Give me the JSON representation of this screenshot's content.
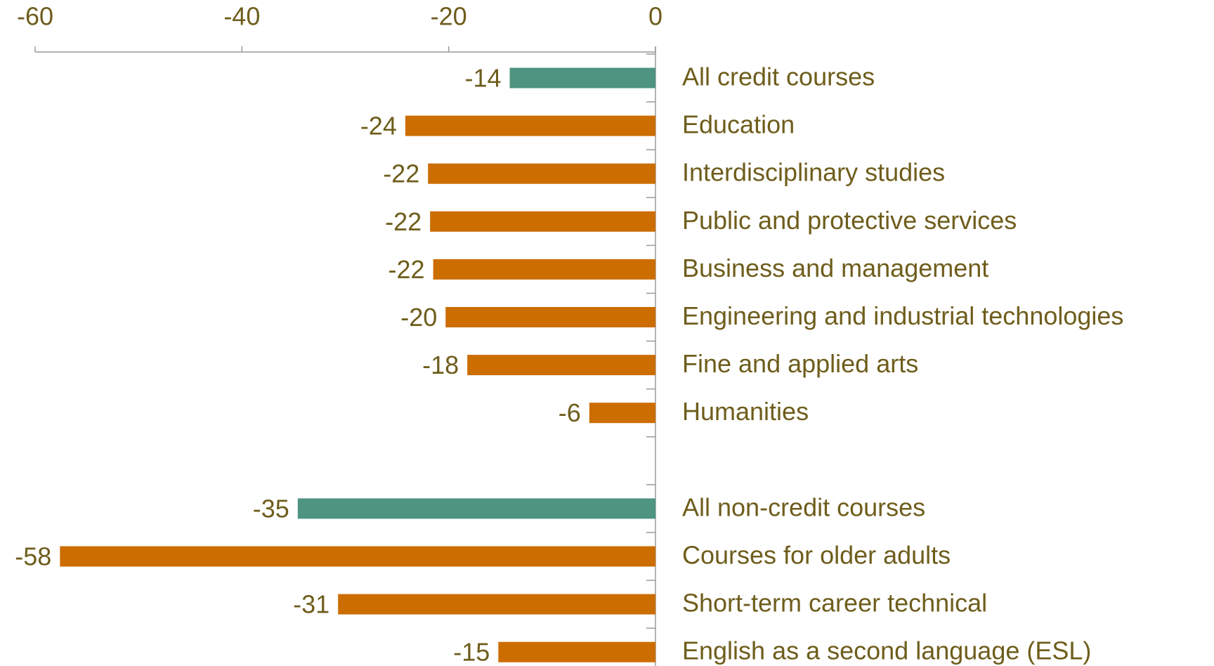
{
  "chart_data": {
    "type": "barh",
    "categories": [
      "All credit courses",
      "Education",
      "Interdisciplinary studies",
      "Public and protective services",
      "Business and management",
      "Engineering and industrial technologies",
      "Fine and applied arts",
      "Humanities",
      null,
      "All non-credit courses",
      "Courses for older adults",
      "Short-term career technical",
      "English as a second language (ESL)"
    ],
    "values": [
      -14.1,
      -24.2,
      -22.0,
      -21.8,
      -21.5,
      -20.3,
      -18.2,
      -6.4,
      null,
      -34.6,
      -57.6,
      -30.7,
      -15.2
    ],
    "value_labels": [
      "-14",
      "-24",
      "-22",
      "-22",
      "-22",
      "-20",
      "-18",
      "-6",
      null,
      "-35",
      "-58",
      "-31",
      "-15"
    ],
    "colors": [
      "#4e9480",
      "#cc6d00",
      "#cc6d00",
      "#cc6d00",
      "#cc6d00",
      "#cc6d00",
      "#cc6d00",
      "#cc6d00",
      null,
      "#4e9480",
      "#cc6d00",
      "#cc6d00",
      "#cc6d00"
    ],
    "xlim": [
      -60,
      0
    ],
    "xticks": [
      -60,
      -40,
      -20,
      0
    ],
    "xaxis_position": "top"
  }
}
